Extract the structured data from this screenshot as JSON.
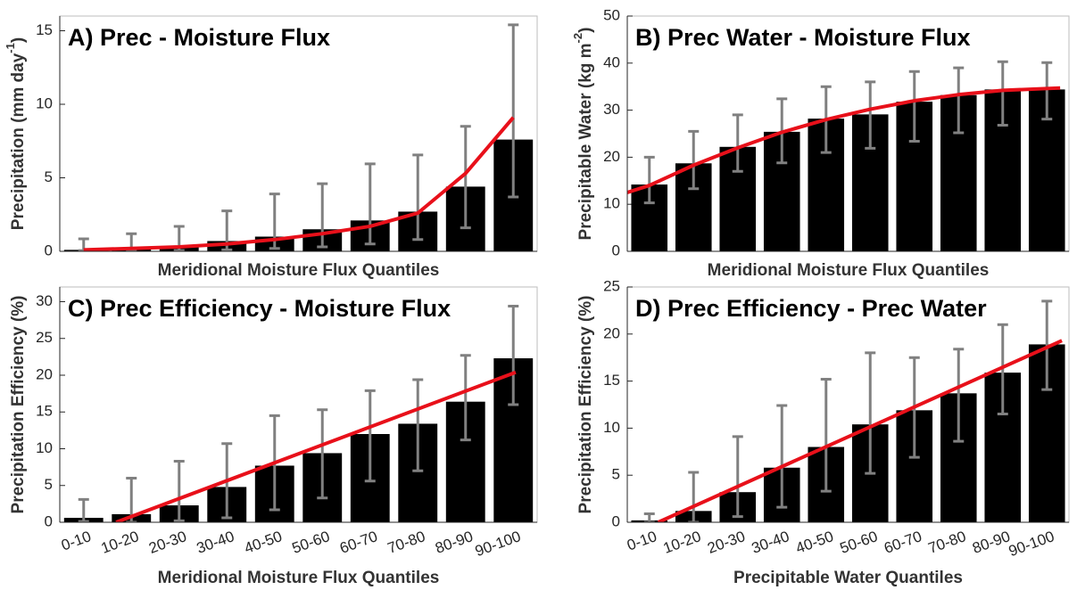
{
  "chart_data": [
    {
      "type": "bar",
      "title": "A) Prec - Moisture Flux",
      "xlabel": "Meridional Moisture Flux Quantiles",
      "ylabel_parts": [
        "Precipitation (mm day",
        "-1",
        ")"
      ],
      "categories": [
        null,
        null,
        null,
        null,
        null,
        null,
        null,
        null,
        null,
        null
      ],
      "values": [
        0.1,
        0.15,
        0.3,
        0.7,
        1.0,
        1.5,
        2.1,
        2.7,
        4.4,
        7.6
      ],
      "error_low": [
        0.05,
        0.05,
        0.05,
        0.1,
        0.2,
        0.3,
        0.5,
        0.8,
        1.6,
        3.7
      ],
      "error_high": [
        0.85,
        1.2,
        1.7,
        2.75,
        3.9,
        4.6,
        5.95,
        6.55,
        8.5,
        15.4
      ],
      "color": "#000000",
      "error_color": "#808080",
      "fit": {
        "color": "#e8101a",
        "x": [
          1,
          2,
          3,
          4,
          5,
          6,
          7,
          8,
          9,
          10
        ],
        "values": [
          0.1,
          0.2,
          0.3,
          0.5,
          0.8,
          1.2,
          1.7,
          2.6,
          5.3,
          9.1
        ]
      },
      "ylim": [
        0,
        16
      ],
      "yticks": [
        0,
        5,
        10,
        15
      ]
    },
    {
      "type": "bar",
      "title": "B) Prec Water - Moisture Flux",
      "xlabel": "Meridional Moisture Flux Quantiles",
      "ylabel_parts": [
        "Precipitable Water (kg m",
        "-2",
        ")"
      ],
      "categories": [
        null,
        null,
        null,
        null,
        null,
        null,
        null,
        null,
        null,
        null
      ],
      "values": [
        14.2,
        18.7,
        22.2,
        25.4,
        28.2,
        29.1,
        31.8,
        33.2,
        34.4,
        34.4
      ],
      "error_low": [
        10.3,
        13.3,
        17,
        18.8,
        21,
        21.9,
        23.4,
        25.2,
        26.8,
        28.1
      ],
      "error_high": [
        20,
        25.5,
        29,
        32.4,
        35,
        36,
        38.2,
        39,
        40.3,
        40.1
      ],
      "color": "#000000",
      "error_color": "#808080",
      "fit": {
        "color": "#e8101a",
        "x": [
          0.5,
          1,
          2,
          3,
          4,
          5,
          6,
          7,
          8,
          9,
          10,
          10.3
        ],
        "values": [
          12.5,
          14,
          18.3,
          22,
          25.3,
          28,
          30.2,
          32,
          33.3,
          34.2,
          34.6,
          34.7
        ]
      },
      "ylim": [
        0,
        50
      ],
      "yticks": [
        0,
        10,
        20,
        30,
        40,
        50
      ]
    },
    {
      "type": "bar",
      "title": "C) Prec Efficiency - Moisture Flux",
      "xlabel": "Meridional Moisture Flux Quantiles",
      "ylabel_parts": [
        "Precipitation Efficiency (%)"
      ],
      "categories": [
        "0-10",
        "10-20",
        "20-30",
        "30-40",
        "40-50",
        "50-60",
        "60-70",
        "70-80",
        "80-90",
        "90-100"
      ],
      "values": [
        0.6,
        1.1,
        2.3,
        4.8,
        7.7,
        9.4,
        12,
        13.4,
        16.4,
        22.3
      ],
      "error_low": [
        0.1,
        0,
        0.2,
        0.6,
        1.7,
        3.3,
        5.6,
        7,
        11.2,
        16
      ],
      "error_high": [
        3.1,
        6,
        8.3,
        10.7,
        14.5,
        15.3,
        17.9,
        19.4,
        22.7,
        29.4
      ],
      "color": "#000000",
      "error_color": "#808080",
      "fit": {
        "color": "#e8101a",
        "x": [
          1.68,
          10.05
        ],
        "values": [
          0,
          20.4
        ]
      },
      "ylim": [
        0,
        32
      ],
      "yticks": [
        0,
        5,
        10,
        15,
        20,
        25,
        30
      ]
    },
    {
      "type": "bar",
      "title": "D) Prec Efficiency - Prec Water",
      "xlabel": "Precipitable Water Quantiles",
      "ylabel_parts": [
        "Precipitation Efficiency (%)"
      ],
      "categories": [
        "0-10",
        "10-20",
        "20-30",
        "30-40",
        "40-50",
        "50-60",
        "60-70",
        "70-80",
        "80-90",
        "90-100"
      ],
      "values": [
        0.2,
        1.2,
        3.2,
        5.8,
        8,
        10.4,
        11.9,
        13.7,
        15.9,
        18.9
      ],
      "error_low": [
        0,
        0,
        0.6,
        1.6,
        3.3,
        5.2,
        6.9,
        8.6,
        11.5,
        14.1
      ],
      "error_high": [
        0.9,
        5.3,
        9.1,
        12.4,
        15.2,
        18,
        17.5,
        18.4,
        21,
        23.5
      ],
      "color": "#000000",
      "error_color": "#808080",
      "fit": {
        "color": "#e8101a",
        "x": [
          1.2,
          10.34
        ],
        "values": [
          0,
          19.3
        ]
      },
      "ylim": [
        0,
        25
      ],
      "yticks": [
        0,
        5,
        10,
        15,
        20,
        25
      ]
    }
  ]
}
